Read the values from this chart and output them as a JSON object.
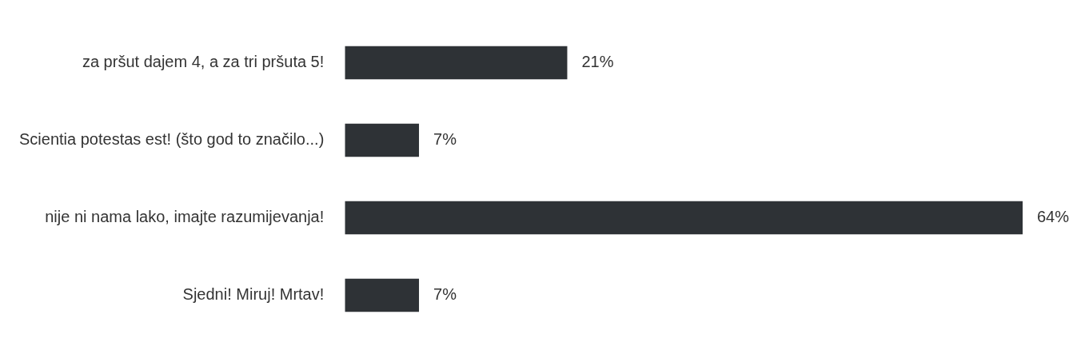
{
  "chart_data": {
    "type": "bar",
    "orientation": "horizontal",
    "categories": [
      "za pršut dajem 4, a za tri pršuta 5!",
      "Scientia potestas est! (što god to značilo...)",
      "nije ni nama lako, imajte razumijevanja!",
      "Sjedni! Miruj! Mrtav!"
    ],
    "values": [
      21,
      7,
      64,
      7
    ],
    "color": "#2e3236",
    "value_labels": [
      "21%",
      "7%",
      "64%",
      "7%"
    ],
    "tick_labels": "y"
  }
}
